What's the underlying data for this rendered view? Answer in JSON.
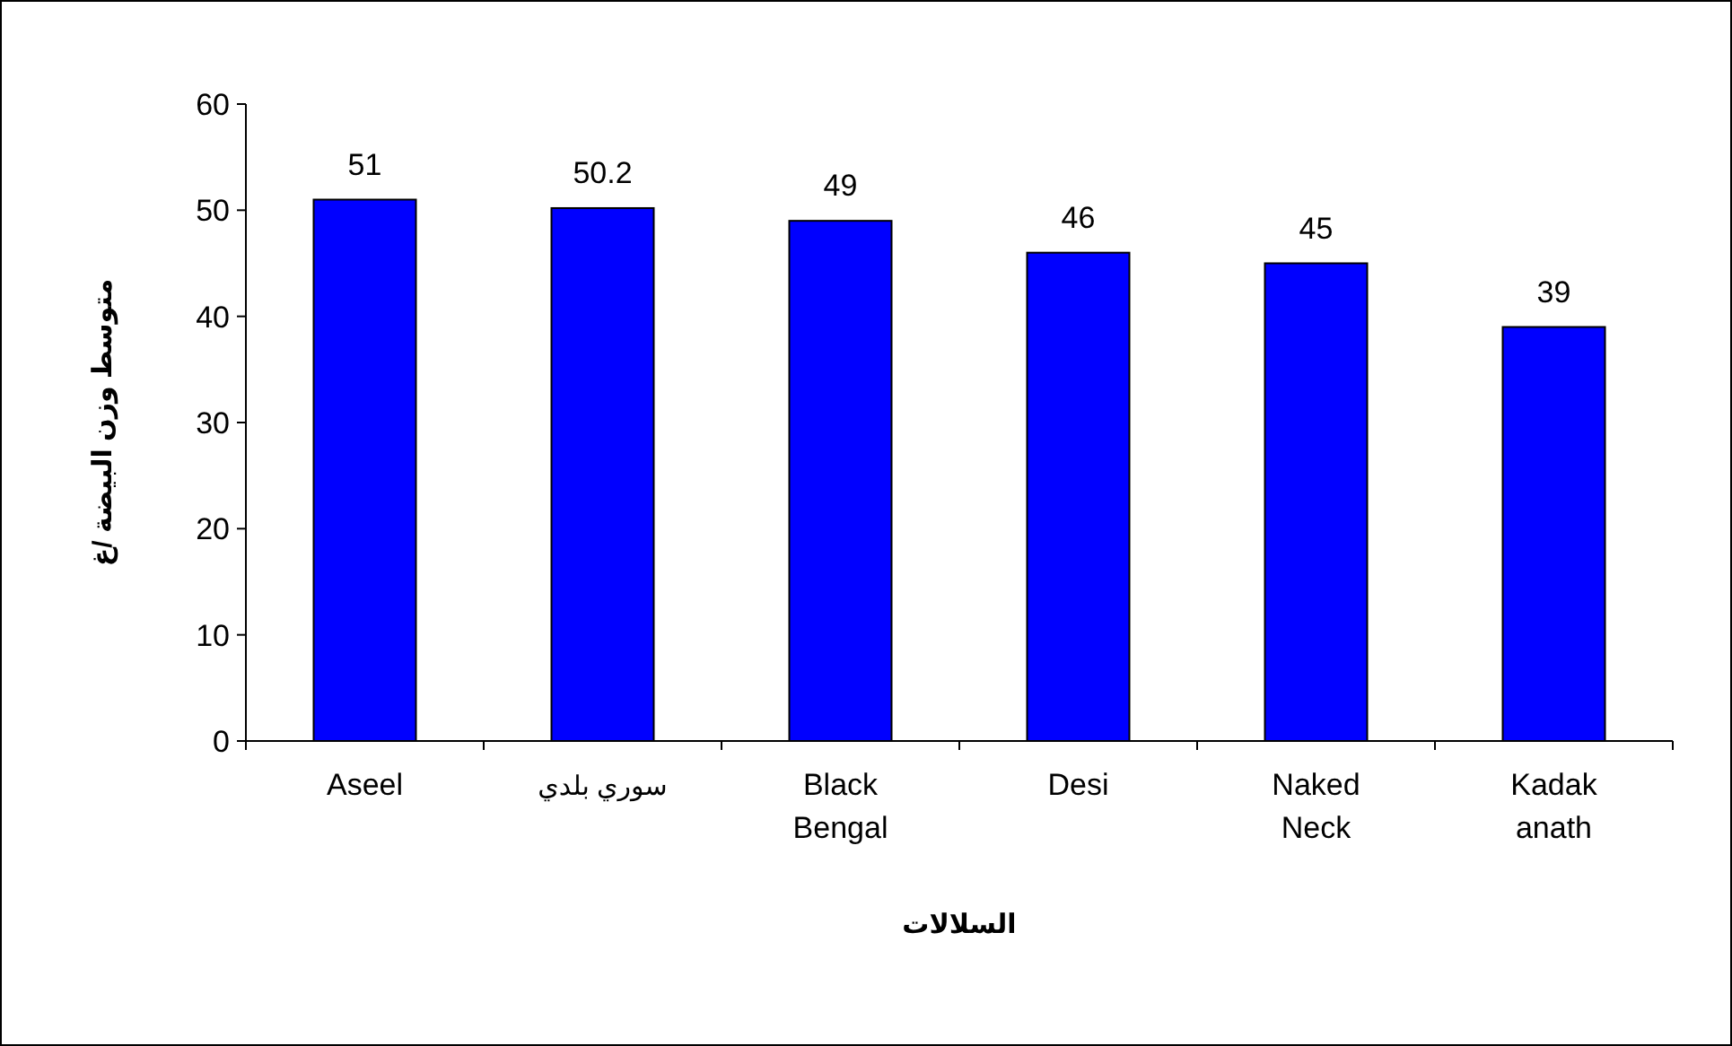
{
  "chart_data": {
    "type": "bar",
    "xlabel": "السلالات",
    "ylabel": "متوسط وزن البيضة /غ",
    "categories": [
      "Aseel",
      "سوري بلدي",
      "Black Bengal",
      "Desi",
      "Naked Neck",
      "Kadak anath"
    ],
    "values": [
      51,
      50.2,
      49,
      46,
      45,
      39
    ],
    "color": "#0000ff",
    "data_labels": true,
    "ylim": [
      0,
      60
    ],
    "yticks": [
      0,
      10,
      20,
      30,
      40,
      50,
      60
    ],
    "grid": false
  }
}
